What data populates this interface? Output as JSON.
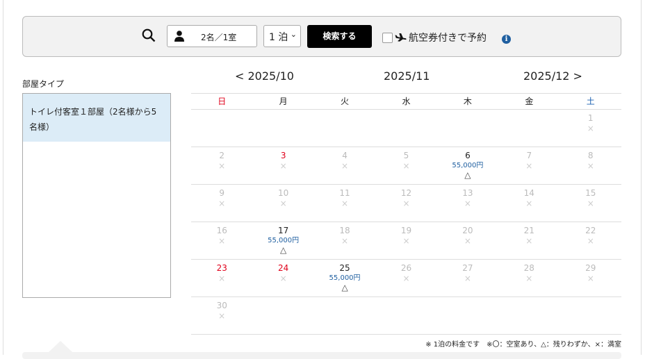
{
  "search": {
    "guests": "2名／1室",
    "nights": "1 泊",
    "submit": "検索する",
    "air_label": "航空券付きで予約",
    "icons": [
      "search-icon",
      "person-icon",
      "chevron-down-icon",
      "airplane-icon",
      "info-icon"
    ]
  },
  "room_type": {
    "label": "部屋タイプ",
    "items": [
      {
        "label": "トイレ付客室１部屋（2名様から5名様）",
        "selected": true
      }
    ]
  },
  "calendar": {
    "prev": "< 2025/10",
    "current": "2025/11",
    "next": "2025/12 >",
    "weekdays": [
      "日",
      "月",
      "火",
      "水",
      "木",
      "金",
      "土"
    ],
    "colors": {
      "holiday": "#e0001a",
      "saturday": "#1a5fb0",
      "price": "#1f5fa0"
    },
    "weeks": [
      [
        null,
        null,
        null,
        null,
        null,
        null,
        {
          "d": "1",
          "s": "×"
        }
      ],
      [
        {
          "d": "2",
          "s": "×"
        },
        {
          "d": "3",
          "s": "×",
          "hol": true
        },
        {
          "d": "4",
          "s": "×"
        },
        {
          "d": "5",
          "s": "×"
        },
        {
          "d": "6",
          "s": "△",
          "p": "55,000円"
        },
        {
          "d": "7",
          "s": "×"
        },
        {
          "d": "8",
          "s": "×"
        }
      ],
      [
        {
          "d": "9",
          "s": "×"
        },
        {
          "d": "10",
          "s": "×"
        },
        {
          "d": "11",
          "s": "×"
        },
        {
          "d": "12",
          "s": "×"
        },
        {
          "d": "13",
          "s": "×"
        },
        {
          "d": "14",
          "s": "×"
        },
        {
          "d": "15",
          "s": "×"
        }
      ],
      [
        {
          "d": "16",
          "s": "×"
        },
        {
          "d": "17",
          "s": "△",
          "p": "55,000円"
        },
        {
          "d": "18",
          "s": "×"
        },
        {
          "d": "19",
          "s": "×"
        },
        {
          "d": "20",
          "s": "×"
        },
        {
          "d": "21",
          "s": "×"
        },
        {
          "d": "22",
          "s": "×"
        }
      ],
      [
        {
          "d": "23",
          "s": "×",
          "hol": true
        },
        {
          "d": "24",
          "s": "×",
          "hol": true
        },
        {
          "d": "25",
          "s": "△",
          "p": "55,000円"
        },
        {
          "d": "26",
          "s": "×"
        },
        {
          "d": "27",
          "s": "×"
        },
        {
          "d": "28",
          "s": "×"
        },
        {
          "d": "29",
          "s": "×"
        }
      ],
      [
        {
          "d": "30",
          "s": "×"
        },
        null,
        null,
        null,
        null,
        null,
        null
      ]
    ],
    "note": "※ 1泊の料金です　※〇：空室あり、△：残りわずか、×：満室"
  }
}
